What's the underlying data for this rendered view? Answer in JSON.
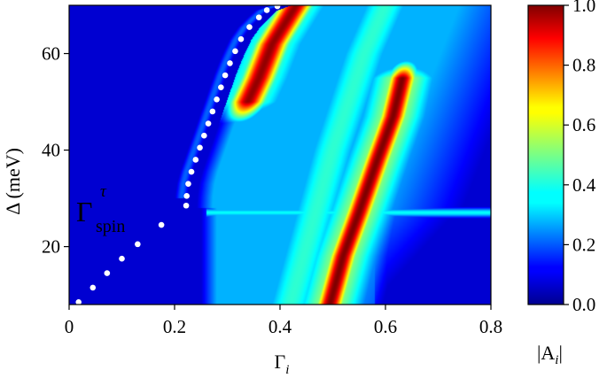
{
  "chart_data": {
    "type": "heatmap",
    "x": {
      "label": "Γ",
      "label_subscript": "i",
      "range": [
        0,
        0.8
      ],
      "ticks": [
        0,
        0.2,
        0.4,
        0.6,
        0.8
      ],
      "tick_labels": [
        "0",
        "0.2",
        "0.4",
        "0.6",
        "0.8"
      ]
    },
    "y": {
      "label": "Δ (meV)",
      "range": [
        8,
        70
      ],
      "ticks": [
        20,
        40,
        60
      ],
      "tick_labels": [
        "20",
        "40",
        "60"
      ]
    },
    "colorbar": {
      "label": "|A",
      "label_subscript": "i",
      "label_close": "|",
      "range": [
        0,
        1
      ],
      "ticks": [
        0,
        0.2,
        0.4,
        0.6,
        0.8,
        1.0
      ],
      "tick_labels": [
        "0.0",
        "0.2",
        "0.4",
        "0.6",
        "0.8",
        "1.0"
      ],
      "colormap": "jet"
    },
    "annotation": {
      "text": "Γ",
      "superscript": "τ",
      "subscript": "spin",
      "color": "#ffffff"
    },
    "dotted_line": {
      "color": "#ffffff",
      "points": [
        [
          0.018,
          8.5
        ],
        [
          0.045,
          11.5
        ],
        [
          0.072,
          14.5
        ],
        [
          0.1,
          17.5
        ],
        [
          0.13,
          20.5
        ],
        [
          0.175,
          24.5
        ],
        [
          0.222,
          28.5
        ],
        [
          0.223,
          30.5
        ],
        [
          0.226,
          33
        ],
        [
          0.232,
          35.5
        ],
        [
          0.24,
          38
        ],
        [
          0.248,
          40.5
        ],
        [
          0.256,
          43
        ],
        [
          0.264,
          45.5
        ],
        [
          0.272,
          48
        ],
        [
          0.28,
          50.5
        ],
        [
          0.288,
          53
        ],
        [
          0.296,
          55.5
        ],
        [
          0.305,
          58
        ],
        [
          0.315,
          60.5
        ],
        [
          0.326,
          63
        ],
        [
          0.342,
          65.5
        ],
        [
          0.36,
          67.5
        ],
        [
          0.375,
          69
        ],
        [
          0.395,
          69.8
        ]
      ]
    },
    "features": [
      {
        "name": "upper-band",
        "path": [
          [
            0.33,
            48
          ],
          [
            0.36,
            55
          ],
          [
            0.385,
            62
          ],
          [
            0.43,
            70
          ]
        ],
        "width": 0.035,
        "peak": 0.98
      },
      {
        "name": "main-band",
        "path": [
          [
            0.495,
            8
          ],
          [
            0.52,
            18
          ],
          [
            0.55,
            27
          ],
          [
            0.585,
            38
          ],
          [
            0.615,
            47
          ],
          [
            0.635,
            56
          ]
        ],
        "width": 0.028,
        "peak": 1.0
      },
      {
        "name": "horizontal-line",
        "y": 27,
        "x_range": [
          0.26,
          0.8
        ],
        "peak": 0.38
      }
    ]
  }
}
